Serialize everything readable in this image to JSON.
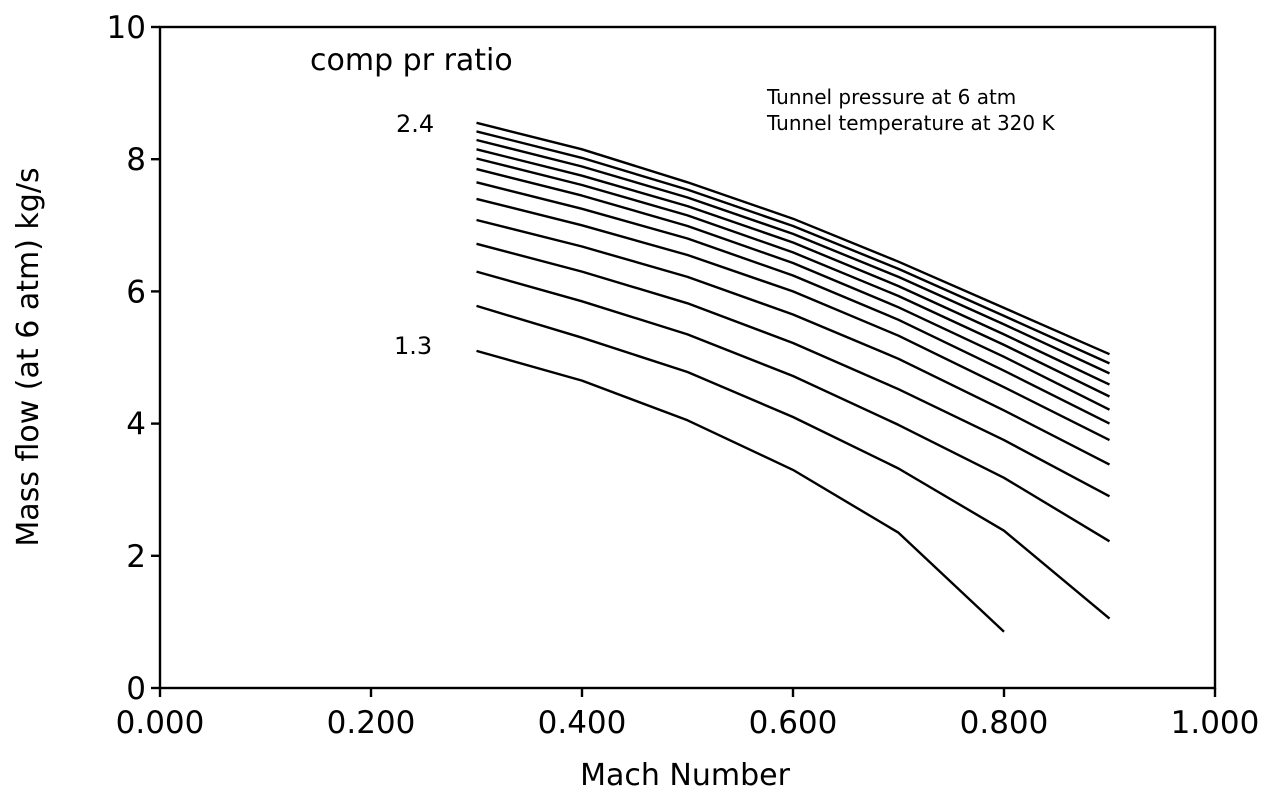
{
  "chart_data": {
    "type": "line",
    "title": "",
    "xlabel": "Mach Number",
    "ylabel": "Mass flow (at 6 atm) kg/s",
    "xlim": [
      0.0,
      1.0
    ],
    "ylim": [
      0,
      10
    ],
    "x_ticks": [
      "0.000",
      "0.200",
      "0.400",
      "0.600",
      "0.800",
      "1.000"
    ],
    "x_tick_values": [
      0.0,
      0.2,
      0.4,
      0.6,
      0.8,
      1.0
    ],
    "y_ticks": [
      "0",
      "2",
      "4",
      "6",
      "8",
      "10"
    ],
    "y_tick_values": [
      0,
      2,
      4,
      6,
      8,
      10
    ],
    "grid": false,
    "legend_title": "comp pr ratio",
    "series_label_top": "2.4",
    "series_label_bottom": "1.3",
    "annotations": [
      "Tunnel pressure at  6 atm",
      "Tunnel temperature at 320 K"
    ],
    "series": [
      {
        "x": [
          0.3,
          0.4,
          0.5,
          0.6,
          0.7,
          0.8,
          0.9
        ],
        "y": [
          8.55,
          8.15,
          7.65,
          7.1,
          6.45,
          5.75,
          5.05
        ]
      },
      {
        "x": [
          0.3,
          0.4,
          0.5,
          0.6,
          0.7,
          0.8,
          0.9
        ],
        "y": [
          8.42,
          8.02,
          7.54,
          6.99,
          6.34,
          5.63,
          4.91
        ]
      },
      {
        "x": [
          0.3,
          0.4,
          0.5,
          0.6,
          0.7,
          0.8,
          0.9
        ],
        "y": [
          8.29,
          7.89,
          7.42,
          6.87,
          6.22,
          5.5,
          4.76
        ]
      },
      {
        "x": [
          0.3,
          0.4,
          0.5,
          0.6,
          0.7,
          0.8,
          0.9
        ],
        "y": [
          8.15,
          7.75,
          7.29,
          6.74,
          6.08,
          5.35,
          4.59
        ]
      },
      {
        "x": [
          0.3,
          0.4,
          0.5,
          0.6,
          0.7,
          0.8,
          0.9
        ],
        "y": [
          8.01,
          7.61,
          7.15,
          6.59,
          5.93,
          5.19,
          4.41
        ]
      },
      {
        "x": [
          0.3,
          0.4,
          0.5,
          0.6,
          0.7,
          0.8,
          0.9
        ],
        "y": [
          7.85,
          7.45,
          6.99,
          6.43,
          5.76,
          5.01,
          4.21
        ]
      },
      {
        "x": [
          0.3,
          0.4,
          0.5,
          0.6,
          0.7,
          0.8,
          0.9
        ],
        "y": [
          7.65,
          7.25,
          6.8,
          6.24,
          5.57,
          4.8,
          4.0
        ]
      },
      {
        "x": [
          0.3,
          0.4,
          0.5,
          0.6,
          0.7,
          0.8,
          0.9
        ],
        "y": [
          7.4,
          7.0,
          6.55,
          6.0,
          5.33,
          4.55,
          3.75
        ]
      },
      {
        "x": [
          0.3,
          0.4,
          0.5,
          0.6,
          0.7,
          0.8,
          0.9
        ],
        "y": [
          7.08,
          6.68,
          6.22,
          5.65,
          4.98,
          4.2,
          3.38
        ]
      },
      {
        "x": [
          0.3,
          0.4,
          0.5,
          0.6,
          0.7,
          0.8,
          0.9
        ],
        "y": [
          6.72,
          6.3,
          5.82,
          5.22,
          4.52,
          3.75,
          2.9
        ]
      },
      {
        "x": [
          0.3,
          0.4,
          0.5,
          0.6,
          0.7,
          0.8,
          0.9
        ],
        "y": [
          6.3,
          5.85,
          5.35,
          4.72,
          3.98,
          3.18,
          2.22
        ]
      },
      {
        "x": [
          0.3,
          0.4,
          0.5,
          0.6,
          0.7,
          0.8,
          0.9
        ],
        "y": [
          5.78,
          5.3,
          4.78,
          4.1,
          3.32,
          2.38,
          1.05
        ]
      },
      {
        "x": [
          0.3,
          0.4,
          0.5,
          0.6,
          0.7,
          0.8
        ],
        "y": [
          5.1,
          4.65,
          4.05,
          3.3,
          2.35,
          0.85
        ]
      }
    ]
  }
}
